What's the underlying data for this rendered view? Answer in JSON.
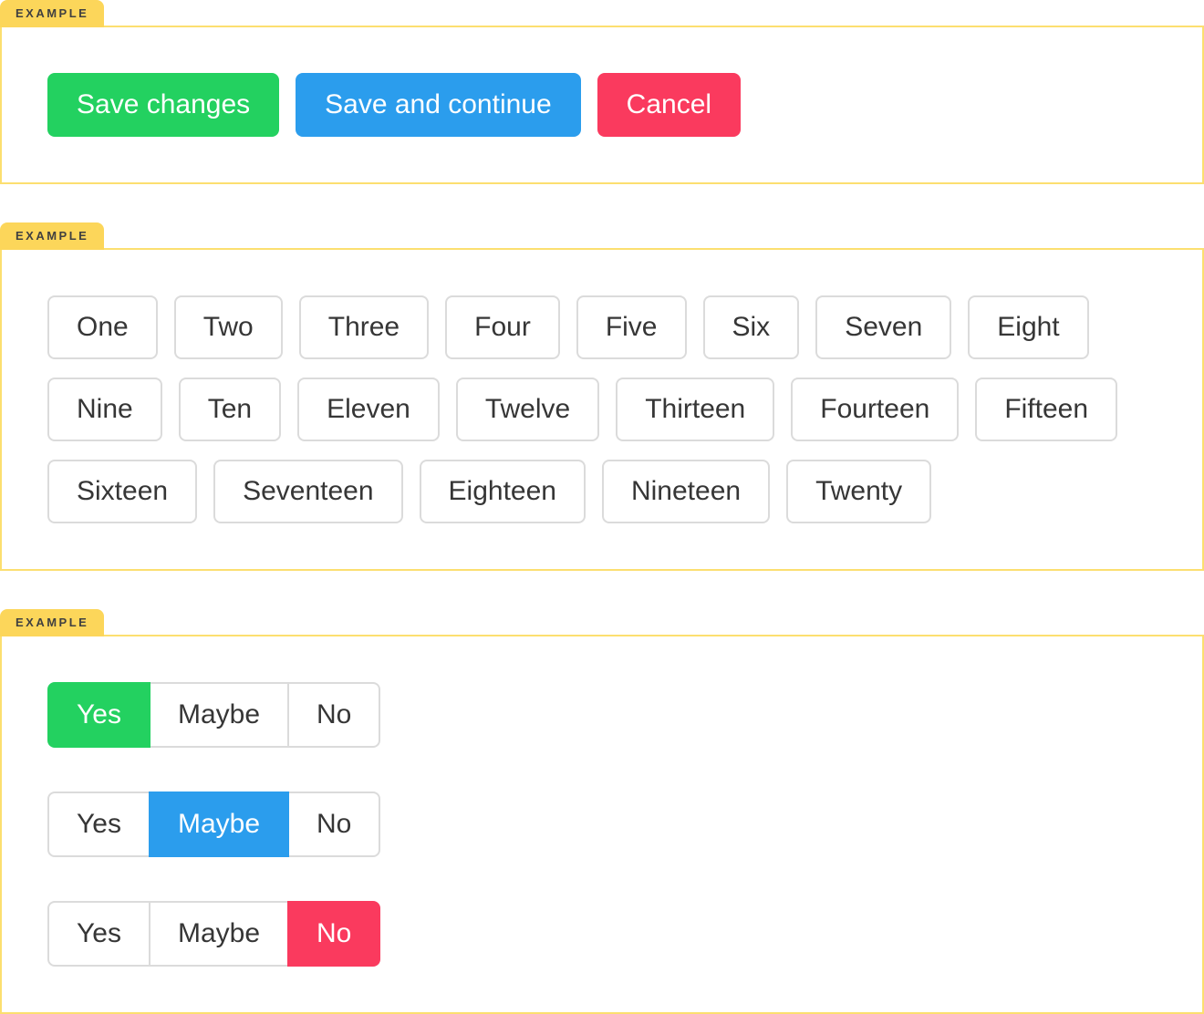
{
  "colors": {
    "success": "#23d160",
    "info": "#2b9ded",
    "danger": "#fa3a5e",
    "tab_yellow": "#fcd65a",
    "box_border": "#fcdf70",
    "btn_border": "#dbdbdb",
    "btn_text": "#363636",
    "tab_text": "#404040"
  },
  "examples": [
    {
      "tag": "EXAMPLE",
      "buttons": [
        {
          "label": "Save changes",
          "variant": "success"
        },
        {
          "label": "Save and continue",
          "variant": "info"
        },
        {
          "label": "Cancel",
          "variant": "danger"
        }
      ]
    },
    {
      "tag": "EXAMPLE",
      "buttons": [
        "One",
        "Two",
        "Three",
        "Four",
        "Five",
        "Six",
        "Seven",
        "Eight",
        "Nine",
        "Ten",
        "Eleven",
        "Twelve",
        "Thirteen",
        "Fourteen",
        "Fifteen",
        "Sixteen",
        "Seventeen",
        "Eighteen",
        "Nineteen",
        "Twenty"
      ]
    },
    {
      "tag": "EXAMPLE",
      "groups": [
        {
          "options": [
            {
              "label": "Yes",
              "selected": true,
              "variant": "success"
            },
            {
              "label": "Maybe",
              "selected": false
            },
            {
              "label": "No",
              "selected": false
            }
          ]
        },
        {
          "options": [
            {
              "label": "Yes",
              "selected": false
            },
            {
              "label": "Maybe",
              "selected": true,
              "variant": "info"
            },
            {
              "label": "No",
              "selected": false
            }
          ]
        },
        {
          "options": [
            {
              "label": "Yes",
              "selected": false
            },
            {
              "label": "Maybe",
              "selected": false
            },
            {
              "label": "No",
              "selected": true,
              "variant": "danger"
            }
          ]
        }
      ]
    }
  ]
}
